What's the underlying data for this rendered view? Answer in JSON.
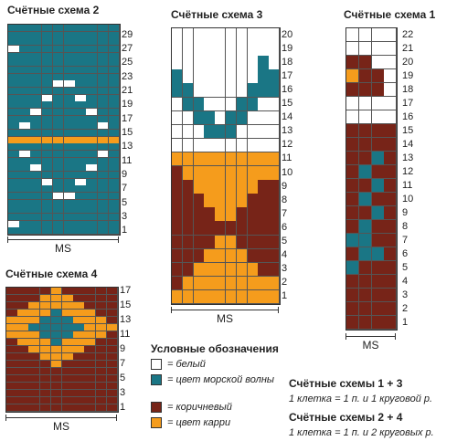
{
  "colors": {
    "W": "#ffffff",
    "T": "#1a7685",
    "B": "#772418",
    "O": "#f59c1c"
  },
  "schemes": [
    {
      "id": "scheme2",
      "title": "Счётные схема 2",
      "ms_label": "MS",
      "row_labels": [
        "29",
        "27",
        "25",
        "23",
        "21",
        "19",
        "17",
        "15",
        "13",
        "11",
        "9",
        "7",
        "5",
        "3",
        "1"
      ],
      "rows": [
        "TTTTTTTTTT",
        "TTTTTTTTTT",
        "TTTTTTTTTT",
        "WTTTTTTTTT",
        "TTTTTTTTTT",
        "TTTTTTTTTT",
        "TTTTTTTTTT",
        "TTTTTTTTTT",
        "TTTTWWTTTT",
        "TTTTTTTTTT",
        "TTTWTTWTTT",
        "TTTTTTTTTT",
        "TTWTTTTWTT",
        "TTTTTTTTTT",
        "TWTTTTTTWT",
        "TTTTTTTTTT",
        "OOOOOOOOOO",
        "TTTTTTTTTT",
        "TWTTTTTTWT",
        "TTTTTTTTTT",
        "TTWTTTTWTT",
        "TTTTTTTTTT",
        "TTTWTTWTTT",
        "TTTTTTTTTT",
        "TTTTWWTTTT",
        "TTTTTTTTTT",
        "TTTTTTTTTT",
        "TTTTTTTTTT",
        "WTTTTTTTTT",
        "TTTTTTTTTT"
      ]
    },
    {
      "id": "scheme3",
      "title": "Счётные схема 3",
      "ms_label": "MS",
      "row_labels": [
        "20",
        "19",
        "18",
        "17",
        "16",
        "15",
        "14",
        "13",
        "12",
        "11",
        "10",
        "9",
        "8",
        "7",
        "6",
        "5",
        "4",
        "3",
        "2",
        "1"
      ],
      "rows": [
        "WWWWWWWWWW",
        "WWWWWWWWWW",
        "WWWWWWWWTW",
        "TWWWWWWWTT",
        "TTWWWWWTTT",
        "WTTWWWTTWW",
        "WWTTWTTWWW",
        "WWWTTTWWWW",
        "WWWWWWWWWW",
        "OOOOOOOOOO",
        "BOOOOOOOOO",
        "BBOOOOOOBB",
        "BBBOOOOBBB",
        "BBBBOOBBBB",
        "BBBBBBBBBB",
        "BBBBOOBBBB",
        "BBBOOOOBBB",
        "BBOOOOOOBB",
        "BOOOOOOOOO",
        "OOOOOOOOOO"
      ]
    },
    {
      "id": "scheme1",
      "title": "Счётные схема 1",
      "ms_label": "MS",
      "row_labels": [
        "22",
        "21",
        "20",
        "19",
        "18",
        "17",
        "16",
        "15",
        "14",
        "13",
        "12",
        "11",
        "10",
        "9",
        "8",
        "7",
        "6",
        "5",
        "4",
        "3",
        "2",
        "1"
      ],
      "rows": [
        "WWWW",
        "WWWW",
        "BBWW",
        "OBBW",
        "BBBW",
        "WWWW",
        "WWWW",
        "BBBB",
        "BBBB",
        "BBTB",
        "BTBB",
        "BBTB",
        "BTBB",
        "BBTB",
        "BTBB",
        "TTBB",
        "BTTB",
        "TBBB",
        "BBBB",
        "BBBB",
        "BBBB",
        "BBBB"
      ]
    },
    {
      "id": "scheme4",
      "title": "Счётные схема 4",
      "ms_label": "MS",
      "row_labels": [
        "17",
        "15",
        "13",
        "11",
        "9",
        "7",
        "5",
        "3",
        "1"
      ],
      "rows": [
        "BBBBOBBBBB",
        "BBBOOOBBBB",
        "BBOOOOOBBB",
        "BOOOTOOOBB",
        "OOOTTTOOOB",
        "OOTTTTTOOO",
        "OOOTTTOOOB",
        "BOOOTOOOBB",
        "BBOOOOOBBB",
        "BBBOOOBBBB",
        "BBBBOBBBBB",
        "BBBBBBBBBB",
        "BBBBBBBBBB",
        "BBBBBBBBBB",
        "BBBBBBBBBB",
        "BBBBBBBBBB",
        "BBBBBBBBBB"
      ]
    }
  ],
  "legend": {
    "title": "Условные обозначения",
    "items": [
      {
        "color_key": "W",
        "label": "= белый"
      },
      {
        "color_key": "T",
        "label": "= цвет морской волны"
      },
      {
        "color_key": "B",
        "label": "= коричневый"
      },
      {
        "color_key": "O",
        "label": "= цвет карри"
      }
    ]
  },
  "notes": [
    {
      "title": "Счётные схемы 1 + 3",
      "text": "1 клетка = 1 п. и 1 круговой р."
    },
    {
      "title": "Счётные схемы 2 + 4",
      "text": "1 клетка = 1 п. и 2 круговых р."
    }
  ]
}
